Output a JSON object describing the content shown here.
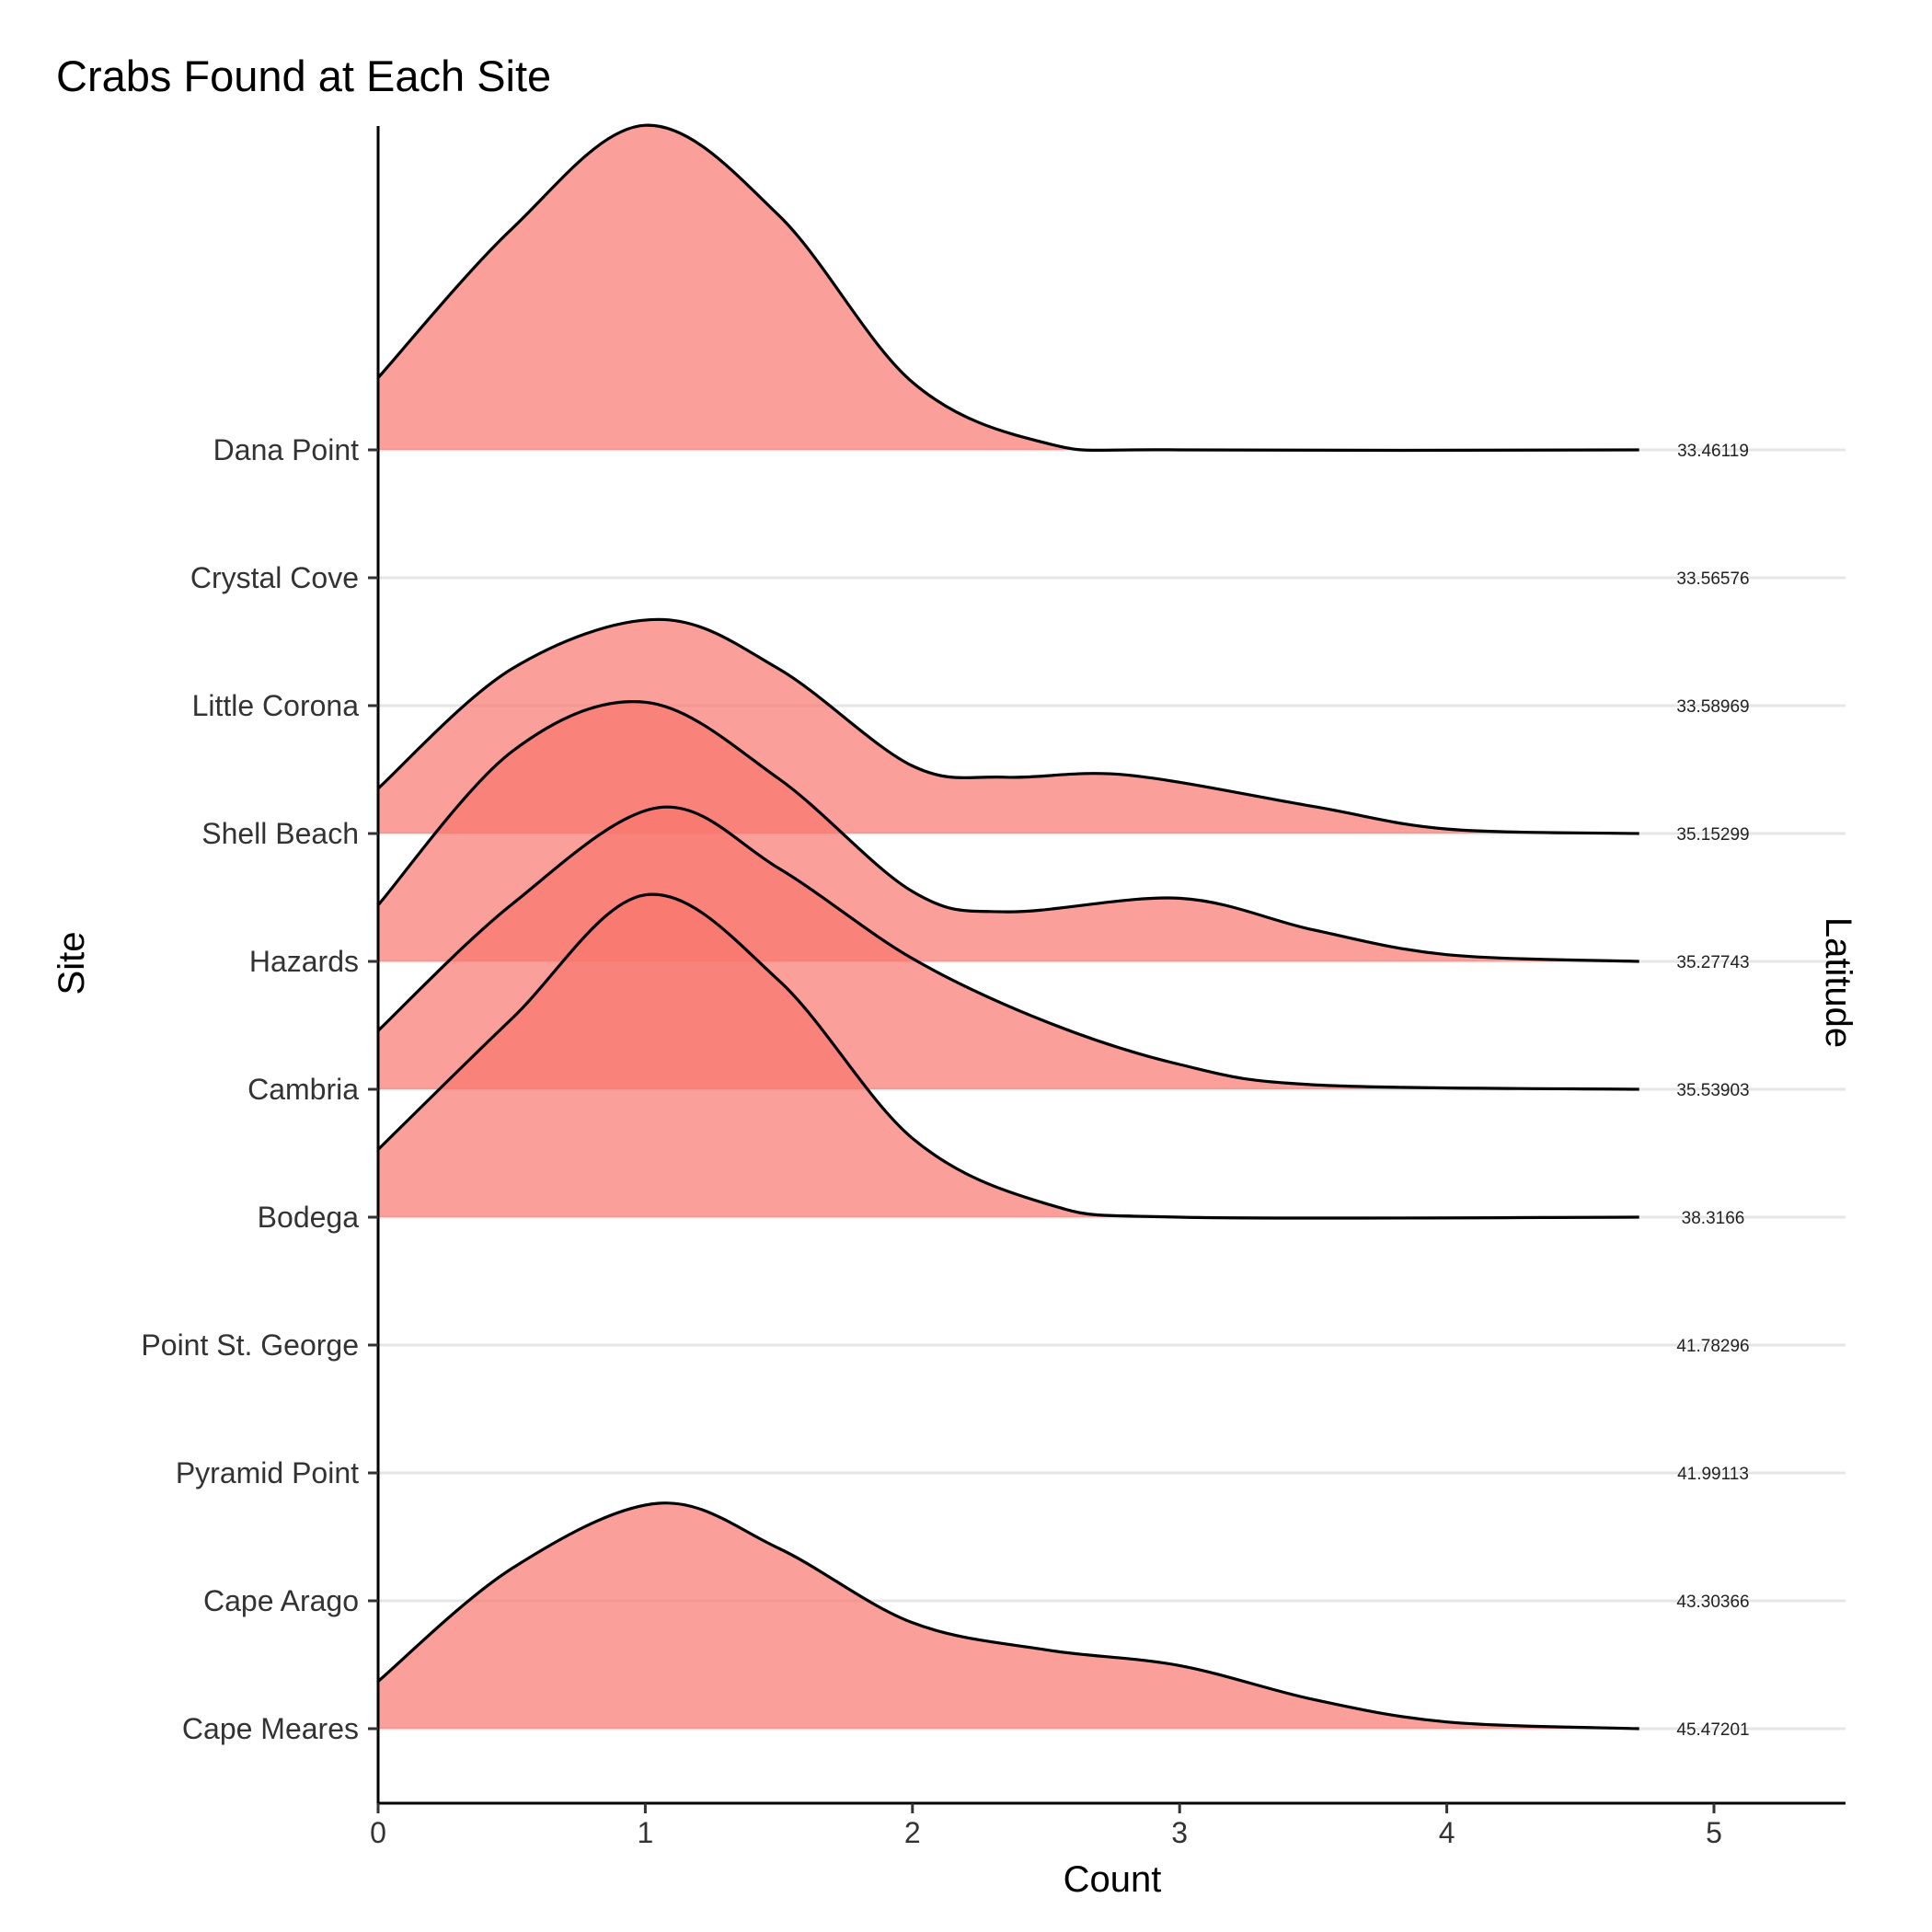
{
  "chart_data": {
    "type": "ridgeline",
    "title": "Crabs Found at Each Site",
    "xlabel": "Count",
    "ylabel": "Site",
    "secondary_ylabel": "Latitude",
    "xlim": [
      0,
      5.5
    ],
    "xticks": [
      "0",
      "1",
      "2",
      "3",
      "4",
      "5"
    ],
    "fill_color": "#F8766D",
    "fill_opacity": 0.7,
    "grid": "horizontal baselines only",
    "sites": [
      {
        "name": "Cape Meares",
        "latitude": "45.47201",
        "density": [
          [
            0,
            0.21
          ],
          [
            0.5,
            0.71
          ],
          [
            1.05,
            1.0
          ],
          [
            1.5,
            0.8
          ],
          [
            2,
            0.47
          ],
          [
            2.5,
            0.35
          ],
          [
            3,
            0.28
          ],
          [
            3.5,
            0.13
          ],
          [
            4,
            0.03
          ],
          [
            4.72,
            0
          ]
        ]
      },
      {
        "name": "Cape Arago",
        "latitude": "43.30366",
        "density": []
      },
      {
        "name": "Pyramid Point",
        "latitude": "41.99113",
        "density": []
      },
      {
        "name": "Point St. George",
        "latitude": "41.78296",
        "density": []
      },
      {
        "name": "Bodega",
        "latitude": "38.3166",
        "density": [
          [
            0,
            0.3
          ],
          [
            0.5,
            0.88
          ],
          [
            1.0,
            1.43
          ],
          [
            1.5,
            1.05
          ],
          [
            2,
            0.35
          ],
          [
            2.5,
            0.06
          ],
          [
            3,
            0
          ],
          [
            4.72,
            0
          ]
        ]
      },
      {
        "name": "Cambria",
        "latitude": "35.53903",
        "density": [
          [
            0,
            0.26
          ],
          [
            0.5,
            0.82
          ],
          [
            1.05,
            1.25
          ],
          [
            1.5,
            0.98
          ],
          [
            2,
            0.58
          ],
          [
            2.5,
            0.3
          ],
          [
            3,
            0.11
          ],
          [
            3.5,
            0.02
          ],
          [
            4.72,
            0
          ]
        ]
      },
      {
        "name": "Hazards",
        "latitude": "35.27743",
        "density": [
          [
            0,
            0.25
          ],
          [
            0.5,
            0.93
          ],
          [
            1.0,
            1.15
          ],
          [
            1.5,
            0.81
          ],
          [
            2,
            0.31
          ],
          [
            2.35,
            0.22
          ],
          [
            3,
            0.28
          ],
          [
            3.5,
            0.14
          ],
          [
            4,
            0.03
          ],
          [
            4.72,
            0
          ]
        ]
      },
      {
        "name": "Shell Beach",
        "latitude": "35.15299",
        "density": [
          [
            0,
            0.2
          ],
          [
            0.5,
            0.73
          ],
          [
            1.05,
            0.95
          ],
          [
            1.5,
            0.73
          ],
          [
            2,
            0.3
          ],
          [
            2.35,
            0.25
          ],
          [
            2.8,
            0.26
          ],
          [
            3.5,
            0.12
          ],
          [
            4,
            0.02
          ],
          [
            4.72,
            0
          ]
        ]
      },
      {
        "name": "Little Corona",
        "latitude": "33.58969",
        "density": []
      },
      {
        "name": "Crystal Cove",
        "latitude": "33.56576",
        "density": []
      },
      {
        "name": "Dana Point",
        "latitude": "33.46119",
        "density": [
          [
            0,
            0.32
          ],
          [
            0.5,
            0.98
          ],
          [
            1.0,
            1.44
          ],
          [
            1.5,
            1.04
          ],
          [
            2,
            0.3
          ],
          [
            2.5,
            0.03
          ],
          [
            3,
            0
          ],
          [
            4.72,
            0
          ]
        ]
      }
    ]
  }
}
